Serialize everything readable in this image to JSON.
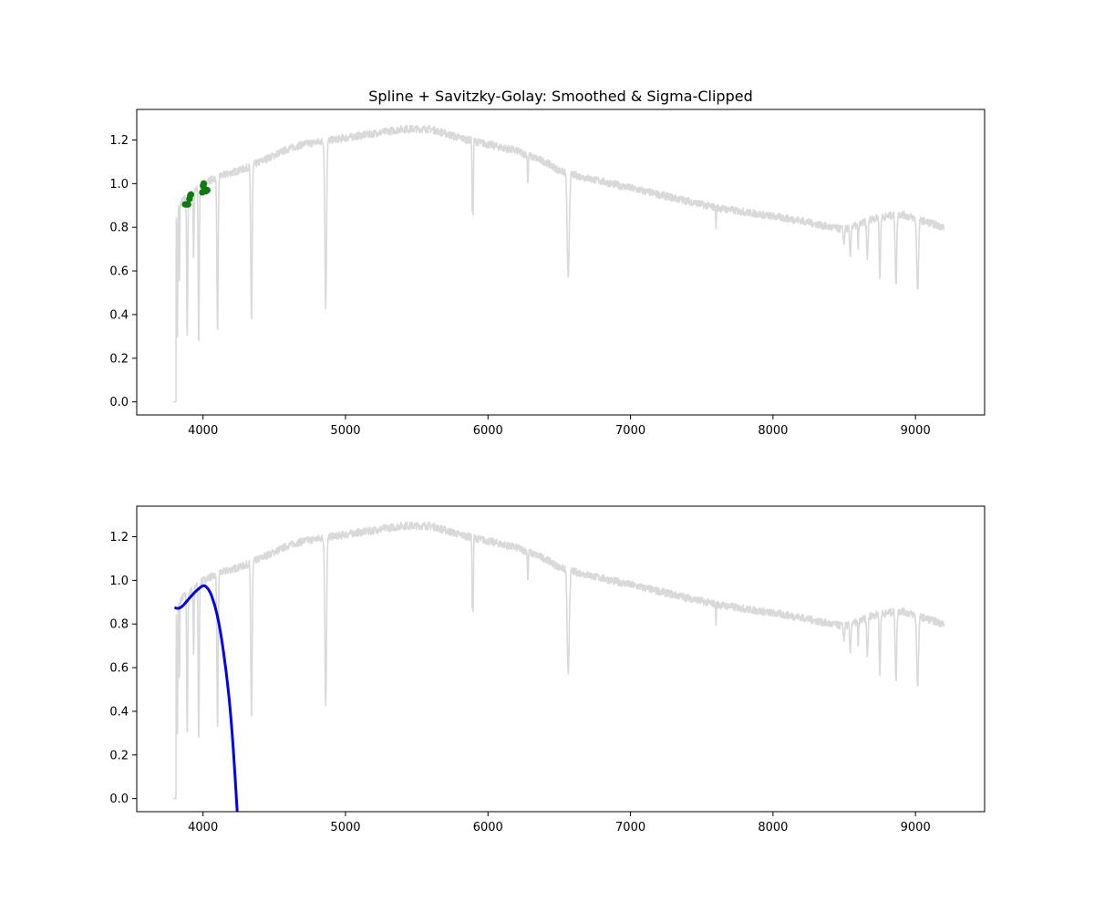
{
  "chart_data": [
    {
      "type": "line",
      "title": "Spline + Savitzky-Golay: Smoothed & Sigma-Clipped",
      "xlabel": "",
      "ylabel": "",
      "xlim": [
        3535,
        9485
      ],
      "ylim": [
        -0.06,
        1.34
      ],
      "xticks": [
        4000,
        5000,
        6000,
        7000,
        8000,
        9000
      ],
      "yticks": [
        0.0,
        0.2,
        0.4,
        0.6,
        0.8,
        1.0,
        1.2
      ],
      "grid": false,
      "legend": "none",
      "series": [
        {
          "kind": "spectrum-line",
          "color": "#d9d9d9",
          "continuum": [
            [
              3800,
              0.88
            ],
            [
              3830,
              0.9
            ],
            [
              3870,
              0.93
            ],
            [
              3900,
              0.94
            ],
            [
              3950,
              0.97
            ],
            [
              4000,
              1.0
            ],
            [
              4100,
              1.03
            ],
            [
              4200,
              1.05
            ],
            [
              4300,
              1.07
            ],
            [
              4400,
              1.1
            ],
            [
              4500,
              1.13
            ],
            [
              4600,
              1.16
            ],
            [
              4700,
              1.18
            ],
            [
              4800,
              1.19
            ],
            [
              4900,
              1.2
            ],
            [
              5000,
              1.21
            ],
            [
              5200,
              1.23
            ],
            [
              5400,
              1.25
            ],
            [
              5600,
              1.25
            ],
            [
              5700,
              1.23
            ],
            [
              5800,
              1.21
            ],
            [
              6000,
              1.18
            ],
            [
              6200,
              1.15
            ],
            [
              6400,
              1.1
            ],
            [
              6500,
              1.06
            ],
            [
              6600,
              1.04
            ],
            [
              6800,
              1.01
            ],
            [
              7000,
              0.98
            ],
            [
              7200,
              0.95
            ],
            [
              7400,
              0.92
            ],
            [
              7600,
              0.89
            ],
            [
              7800,
              0.87
            ],
            [
              8000,
              0.85
            ],
            [
              8200,
              0.83
            ],
            [
              8400,
              0.8
            ],
            [
              8500,
              0.79
            ],
            [
              8600,
              0.81
            ],
            [
              8700,
              0.84
            ],
            [
              8800,
              0.85
            ],
            [
              8900,
              0.86
            ],
            [
              9000,
              0.84
            ],
            [
              9100,
              0.82
            ],
            [
              9200,
              0.8
            ]
          ],
          "absorption_lines": [
            [
              3820,
              0.27,
              4
            ],
            [
              3835,
              0.55,
              3
            ],
            [
              3889,
              0.29,
              5
            ],
            [
              3934,
              0.65,
              4
            ],
            [
              3970,
              0.26,
              5
            ],
            [
              4102,
              0.3,
              6
            ],
            [
              4340,
              0.37,
              7
            ],
            [
              4861,
              0.44,
              8
            ],
            [
              5890,
              0.84,
              3
            ],
            [
              5896,
              0.86,
              3
            ],
            [
              6280,
              1.0,
              4
            ],
            [
              6563,
              0.56,
              10
            ],
            [
              7600,
              0.79,
              3
            ],
            [
              8498,
              0.72,
              5
            ],
            [
              8542,
              0.67,
              6
            ],
            [
              8598,
              0.7,
              4
            ],
            [
              8662,
              0.66,
              7
            ],
            [
              8750,
              0.57,
              6
            ],
            [
              8863,
              0.53,
              7
            ],
            [
              9015,
              0.52,
              9
            ]
          ],
          "step_points": [
            [
              3790,
              0.0
            ],
            [
              3810,
              0.0
            ],
            [
              3812,
              0.8
            ]
          ]
        },
        {
          "kind": "clipped-points",
          "color": "#0f7a0f",
          "points": [
            [
              3875,
              0.905
            ],
            [
              3885,
              0.905
            ],
            [
              3895,
              0.905
            ],
            [
              3905,
              0.93
            ],
            [
              3910,
              0.945
            ],
            [
              3915,
              0.95
            ],
            [
              3995,
              0.96
            ],
            [
              4000,
              0.99
            ],
            [
              4005,
              1.0
            ],
            [
              4012,
              0.975
            ],
            [
              4020,
              0.965
            ],
            [
              4030,
              0.97
            ]
          ]
        }
      ]
    },
    {
      "type": "line",
      "title": "",
      "xlabel": "",
      "ylabel": "",
      "xlim": [
        3535,
        9485
      ],
      "ylim": [
        -0.06,
        1.34
      ],
      "xticks": [
        4000,
        5000,
        6000,
        7000,
        8000,
        9000
      ],
      "yticks": [
        0.0,
        0.2,
        0.4,
        0.6,
        0.8,
        1.0,
        1.2
      ],
      "grid": false,
      "legend": "none",
      "series": [
        {
          "kind": "spectrum-line",
          "color": "#d9d9d9",
          "same_as_panel": 0
        },
        {
          "kind": "fit-curve",
          "color": "#0000ee",
          "points": [
            [
              3800,
              0.875
            ],
            [
              3830,
              0.872
            ],
            [
              3860,
              0.885
            ],
            [
              3900,
              0.915
            ],
            [
              3950,
              0.95
            ],
            [
              4000,
              0.975
            ],
            [
              4030,
              0.965
            ],
            [
              4060,
              0.93
            ],
            [
              4100,
              0.84
            ],
            [
              4140,
              0.69
            ],
            [
              4180,
              0.48
            ],
            [
              4210,
              0.25
            ],
            [
              4240,
              -0.06
            ]
          ]
        }
      ]
    }
  ]
}
